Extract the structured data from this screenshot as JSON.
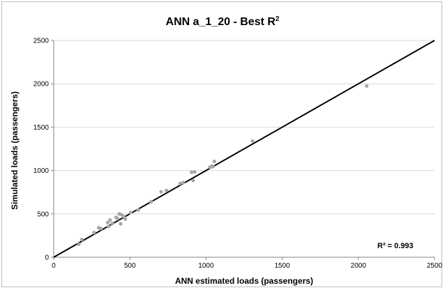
{
  "chart_data": {
    "type": "scatter",
    "title": "ANN a_1_20 - Best R",
    "title_superscript": "2",
    "xlabel": "ANN estimated loads (passengers)",
    "ylabel": "Simulated loads (passengers)",
    "xlim": [
      0,
      2500
    ],
    "ylim": [
      0,
      2500
    ],
    "xticks": [
      0,
      500,
      1000,
      1500,
      2000,
      2500
    ],
    "yticks": [
      0,
      500,
      1000,
      1500,
      2000,
      2500
    ],
    "grid": "horizontal",
    "annotation": "R² = 0.993",
    "point_color": "#a6a6a6",
    "line_color": "#000000",
    "reference_line": {
      "x": [
        0,
        2500
      ],
      "y": [
        0,
        2500
      ]
    },
    "series": [
      {
        "points": [
          [
            165,
            150
          ],
          [
            185,
            205
          ],
          [
            265,
            285
          ],
          [
            295,
            340
          ],
          [
            310,
            330
          ],
          [
            355,
            400
          ],
          [
            360,
            355
          ],
          [
            370,
            430
          ],
          [
            385,
            390
          ],
          [
            410,
            460
          ],
          [
            420,
            445
          ],
          [
            430,
            500
          ],
          [
            440,
            385
          ],
          [
            445,
            490
          ],
          [
            460,
            470
          ],
          [
            470,
            440
          ],
          [
            505,
            515
          ],
          [
            555,
            545
          ],
          [
            640,
            640
          ],
          [
            705,
            755
          ],
          [
            740,
            770
          ],
          [
            830,
            850
          ],
          [
            850,
            860
          ],
          [
            905,
            980
          ],
          [
            915,
            885
          ],
          [
            925,
            985
          ],
          [
            1025,
            1040
          ],
          [
            1040,
            1050
          ],
          [
            1045,
            1045
          ],
          [
            1055,
            1105
          ],
          [
            1305,
            1340
          ],
          [
            2055,
            1975
          ]
        ]
      }
    ]
  }
}
